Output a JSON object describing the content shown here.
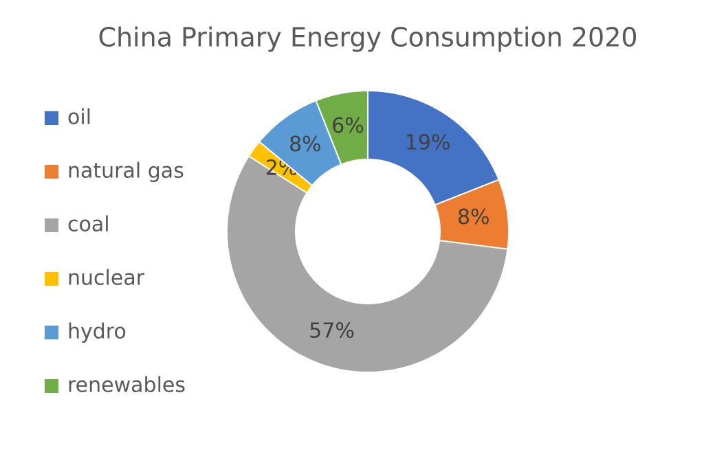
{
  "chart_data": {
    "type": "donut",
    "title": "China Primary Energy Consumption 2020",
    "categories": [
      "oil",
      "natural gas",
      "coal",
      "nuclear",
      "hydro",
      "renewables"
    ],
    "values": [
      19,
      8,
      57,
      2,
      8,
      6
    ],
    "value_labels": [
      "19%",
      "8%",
      "57%",
      "2%",
      "8%",
      "6%"
    ],
    "colors": [
      "#4472c4",
      "#ed7d31",
      "#a5a5a5",
      "#ffc000",
      "#5b9bd5",
      "#70ad47"
    ],
    "legend": "left"
  }
}
